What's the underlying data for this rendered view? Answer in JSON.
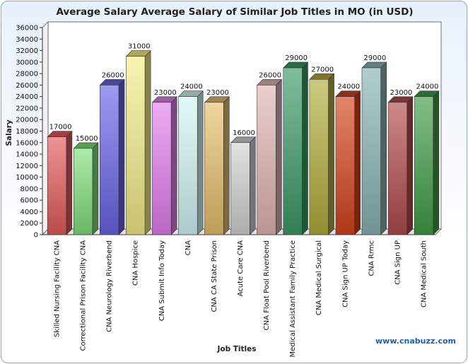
{
  "chart_data": {
    "type": "bar",
    "title": "Average Salary Average Salary of Similar Job Titles in MO (in USD)",
    "xlabel": "Job Titles",
    "ylabel": "Salary",
    "ylim": [
      0,
      36000
    ],
    "ytick_step": 2000,
    "grid": false,
    "categories": [
      "Skilled Nursing Facility CNA",
      "Correctional Prison Facility CNA",
      "CNA Neurology Riverbend",
      "CNA Hospice",
      "CNA Submit Info Today",
      "CNA",
      "CNA CA State Prison",
      "Acute Care CNA",
      "CNA Float Pool Riverbend",
      "Medical Assistant Family Practice",
      "CNA Medical Surgical",
      "CNA Sign UP Today",
      "CNA Rrmc",
      "CNA Sign UP",
      "CNA Medical South"
    ],
    "values": [
      17000,
      15000,
      26000,
      31000,
      23000,
      24000,
      23000,
      16000,
      26000,
      29000,
      27000,
      24000,
      29000,
      23000,
      24000
    ],
    "colors": [
      "#e35b5b",
      "#7fe07a",
      "#6a63e8",
      "#f4ee88",
      "#e47ef0",
      "#d4f6f6",
      "#e6c06a",
      "#d2d2d2",
      "#e2b4b4",
      "#3c9a66",
      "#b2ad3a",
      "#d4431c",
      "#88b4b4",
      "#b24a4a",
      "#3f9c46"
    ]
  },
  "watermark": "www.cnabuzz.com"
}
